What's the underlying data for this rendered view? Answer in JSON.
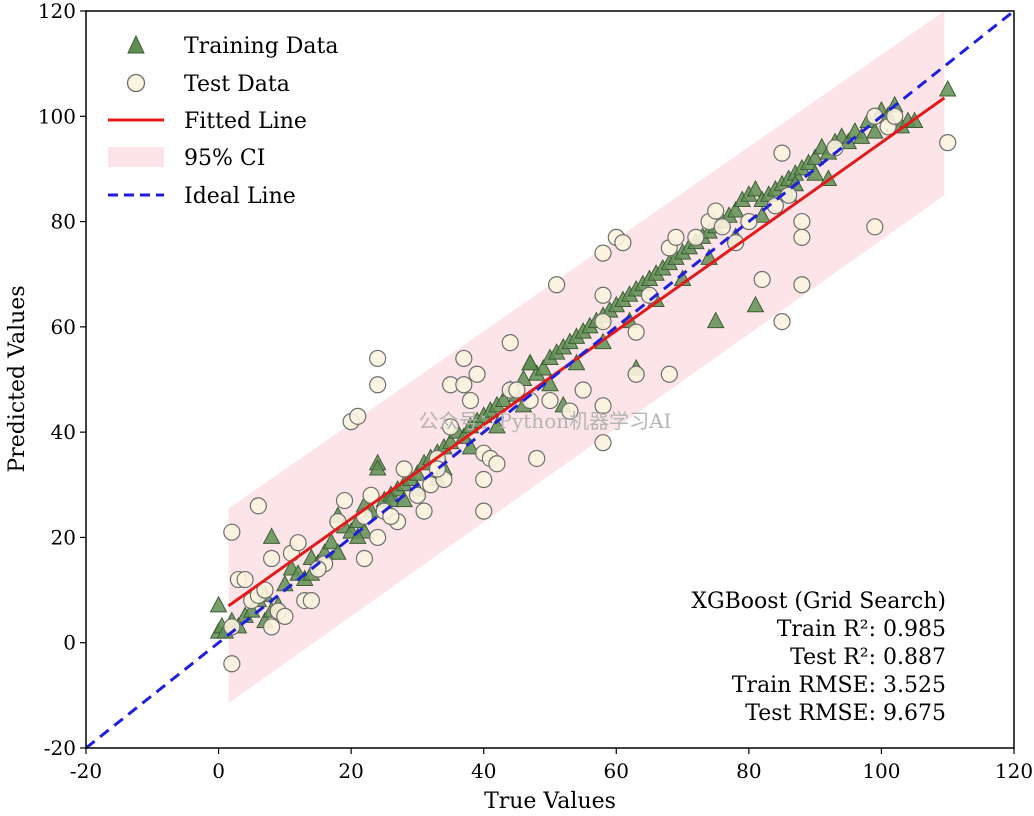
{
  "chart_data": {
    "type": "scatter",
    "xlabel": "True Values",
    "ylabel": "Predicted Values",
    "xlim": [
      -20,
      120
    ],
    "ylim": [
      -20,
      120
    ],
    "x_ticks": [
      "-20",
      "0",
      "20",
      "40",
      "60",
      "80",
      "100",
      "120"
    ],
    "y_ticks": [
      "-20",
      "0",
      "20",
      "40",
      "60",
      "80",
      "100",
      "120"
    ],
    "legend_position": "top-left",
    "legend": {
      "training": "Training Data",
      "test": "Test Data",
      "fitted": "Fitted Line",
      "ci": "95% CI",
      "ideal": "Ideal Line"
    },
    "colors": {
      "training_fill": "#5f8f52",
      "training_edge": "#3d5e36",
      "test_fill": "#fbf3df",
      "test_edge": "#6e6e6e",
      "fitted": "#e31a1c",
      "ci": "#fde4e8",
      "ideal": "#1f1fdc"
    },
    "fitted_line": {
      "x": [
        1.5,
        109.5
      ],
      "y": [
        7,
        103.5
      ]
    },
    "ci_band": {
      "x": [
        1.5,
        109.5
      ],
      "upper": [
        25.5,
        120
      ],
      "lower": [
        -11.5,
        85
      ]
    },
    "ideal_line": {
      "x": [
        -20,
        120
      ],
      "y": [
        -20,
        120
      ]
    },
    "annotation": {
      "title": "XGBoost (Grid Search)",
      "train_r2": "Train R²: 0.985",
      "test_r2": "Test R²: 0.887",
      "train_rmse": "Train RMSE: 3.525",
      "test_rmse": "Test RMSE: 9.675"
    },
    "watermark": "公众号：Python机器学习AI",
    "series": [
      {
        "name": "Training Data",
        "points": [
          [
            0,
            7
          ],
          [
            0,
            2
          ],
          [
            0.5,
            3
          ],
          [
            1,
            2
          ],
          [
            2,
            4
          ],
          [
            3,
            3
          ],
          [
            4,
            5
          ],
          [
            5,
            6
          ],
          [
            6,
            8
          ],
          [
            7,
            9
          ],
          [
            7,
            4
          ],
          [
            8,
            6
          ],
          [
            9,
            7
          ],
          [
            8,
            20
          ],
          [
            10,
            11
          ],
          [
            11,
            14
          ],
          [
            12,
            13
          ],
          [
            13,
            12
          ],
          [
            14,
            16
          ],
          [
            15,
            15
          ],
          [
            16,
            17
          ],
          [
            17,
            19
          ],
          [
            18,
            24
          ],
          [
            19,
            22
          ],
          [
            20,
            21
          ],
          [
            21,
            23
          ],
          [
            22,
            26
          ],
          [
            23,
            25
          ],
          [
            24,
            34
          ],
          [
            24,
            33
          ],
          [
            25,
            27
          ],
          [
            26,
            28
          ],
          [
            27,
            29
          ],
          [
            28,
            30
          ],
          [
            29,
            31
          ],
          [
            30,
            32
          ],
          [
            31,
            34
          ],
          [
            32,
            35
          ],
          [
            33,
            36
          ],
          [
            34,
            37
          ],
          [
            35,
            38
          ],
          [
            36,
            40
          ],
          [
            37,
            39
          ],
          [
            38,
            41
          ],
          [
            39,
            42
          ],
          [
            40,
            43
          ],
          [
            41,
            44
          ],
          [
            42,
            45
          ],
          [
            43,
            46
          ],
          [
            44,
            48
          ],
          [
            45,
            47
          ],
          [
            46,
            50
          ],
          [
            47,
            53
          ],
          [
            48,
            51
          ],
          [
            49,
            52
          ],
          [
            50,
            54
          ],
          [
            51,
            55
          ],
          [
            52,
            56
          ],
          [
            53,
            57
          ],
          [
            54,
            58
          ],
          [
            55,
            59
          ],
          [
            56,
            60
          ],
          [
            57,
            61
          ],
          [
            58,
            62
          ],
          [
            59,
            63
          ],
          [
            60,
            64
          ],
          [
            61,
            65
          ],
          [
            62,
            66
          ],
          [
            63,
            67
          ],
          [
            64,
            68
          ],
          [
            65,
            69
          ],
          [
            66,
            70
          ],
          [
            67,
            71
          ],
          [
            68,
            72
          ],
          [
            69,
            73
          ],
          [
            70,
            74
          ],
          [
            71,
            75
          ],
          [
            72,
            76
          ],
          [
            73,
            77
          ],
          [
            74,
            78
          ],
          [
            75,
            79
          ],
          [
            76,
            80
          ],
          [
            77,
            81
          ],
          [
            78,
            82
          ],
          [
            79,
            84
          ],
          [
            80,
            85
          ],
          [
            81,
            86
          ],
          [
            82,
            84
          ],
          [
            83,
            85
          ],
          [
            84,
            86
          ],
          [
            85,
            87
          ],
          [
            86,
            88
          ],
          [
            87,
            89
          ],
          [
            88,
            90
          ],
          [
            89,
            91
          ],
          [
            90,
            92
          ],
          [
            91,
            94
          ],
          [
            92,
            93
          ],
          [
            93,
            95
          ],
          [
            94,
            96
          ],
          [
            95,
            95
          ],
          [
            96,
            97
          ],
          [
            97,
            96
          ],
          [
            98,
            99
          ],
          [
            99,
            97
          ],
          [
            100,
            101
          ],
          [
            101,
            100
          ],
          [
            102,
            102
          ],
          [
            103,
            98
          ],
          [
            104,
            99
          ],
          [
            105,
            99
          ],
          [
            110,
            105
          ],
          [
            14,
            13
          ],
          [
            18,
            17
          ],
          [
            22,
            21
          ],
          [
            26,
            27
          ],
          [
            30,
            29
          ],
          [
            34,
            33
          ],
          [
            38,
            37
          ],
          [
            42,
            41
          ],
          [
            46,
            45
          ],
          [
            50,
            49
          ],
          [
            54,
            53
          ],
          [
            58,
            57
          ],
          [
            62,
            61
          ],
          [
            66,
            65
          ],
          [
            70,
            69
          ],
          [
            74,
            73
          ],
          [
            78,
            77
          ],
          [
            82,
            81
          ],
          [
            86,
            85
          ],
          [
            90,
            89
          ],
          [
            75,
            61
          ],
          [
            81,
            64
          ],
          [
            52,
            45
          ],
          [
            63,
            52
          ],
          [
            87,
            87
          ],
          [
            92,
            88
          ],
          [
            47,
            53
          ],
          [
            33,
            31
          ],
          [
            28,
            27
          ],
          [
            21,
            20
          ]
        ]
      },
      {
        "name": "Test Data",
        "points": [
          [
            2,
            21
          ],
          [
            2,
            3
          ],
          [
            2,
            -4
          ],
          [
            3,
            12
          ],
          [
            4,
            12
          ],
          [
            5,
            8
          ],
          [
            6,
            9
          ],
          [
            6,
            26
          ],
          [
            7,
            10
          ],
          [
            8,
            16
          ],
          [
            8,
            3
          ],
          [
            9,
            6
          ],
          [
            10,
            5
          ],
          [
            11,
            17
          ],
          [
            12,
            19
          ],
          [
            13,
            8
          ],
          [
            14,
            8
          ],
          [
            16,
            15
          ],
          [
            18,
            23
          ],
          [
            19,
            27
          ],
          [
            20,
            42
          ],
          [
            21,
            43
          ],
          [
            22,
            24
          ],
          [
            22,
            16
          ],
          [
            23,
            28
          ],
          [
            24,
            20
          ],
          [
            24,
            54
          ],
          [
            24,
            49
          ],
          [
            25,
            25
          ],
          [
            27,
            23
          ],
          [
            28,
            33
          ],
          [
            30,
            28
          ],
          [
            31,
            25
          ],
          [
            32,
            30
          ],
          [
            33,
            35
          ],
          [
            34,
            31
          ],
          [
            35,
            41
          ],
          [
            35,
            49
          ],
          [
            37,
            49
          ],
          [
            37,
            54
          ],
          [
            38,
            46
          ],
          [
            39,
            51
          ],
          [
            40,
            31
          ],
          [
            40,
            36
          ],
          [
            40,
            25
          ],
          [
            41,
            35
          ],
          [
            42,
            34
          ],
          [
            44,
            57
          ],
          [
            44,
            48
          ],
          [
            45,
            48
          ],
          [
            48,
            35
          ],
          [
            50,
            46
          ],
          [
            51,
            68
          ],
          [
            53,
            44
          ],
          [
            55,
            48
          ],
          [
            58,
            61
          ],
          [
            58,
            66
          ],
          [
            58,
            45
          ],
          [
            58,
            38
          ],
          [
            58,
            74
          ],
          [
            60,
            77
          ],
          [
            61,
            76
          ],
          [
            63,
            51
          ],
          [
            63,
            59
          ],
          [
            65,
            66
          ],
          [
            68,
            51
          ],
          [
            68,
            75
          ],
          [
            69,
            77
          ],
          [
            72,
            77
          ],
          [
            74,
            80
          ],
          [
            75,
            82
          ],
          [
            76,
            79
          ],
          [
            78,
            76
          ],
          [
            80,
            80
          ],
          [
            82,
            69
          ],
          [
            84,
            83
          ],
          [
            85,
            61
          ],
          [
            85,
            93
          ],
          [
            86,
            85
          ],
          [
            88,
            68
          ],
          [
            88,
            80
          ],
          [
            88,
            77
          ],
          [
            93,
            94
          ],
          [
            99,
            79
          ],
          [
            99,
            100
          ],
          [
            101,
            98
          ],
          [
            102,
            100
          ],
          [
            110,
            95
          ],
          [
            15,
            14
          ],
          [
            26,
            24
          ],
          [
            33,
            33
          ],
          [
            47,
            46
          ]
        ]
      }
    ]
  }
}
